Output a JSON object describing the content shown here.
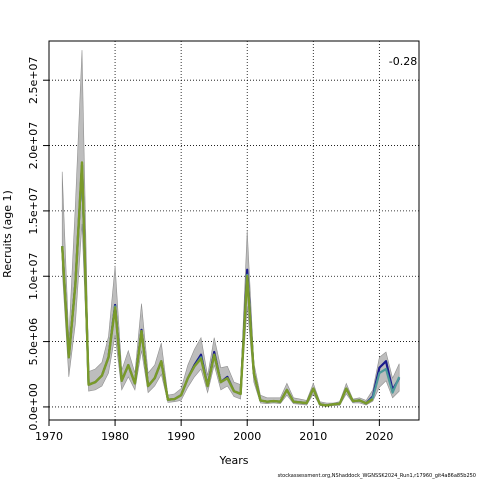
{
  "chart_data": {
    "type": "line",
    "xlabel": "Years",
    "ylabel": "Recruits (age 1)",
    "xlim": [
      1970,
      2026
    ],
    "ylim": [
      -1000000,
      28000000
    ],
    "x_ticks": [
      1970,
      1980,
      1990,
      2000,
      2010,
      2020
    ],
    "y_ticks": [
      0,
      5000000,
      10000000,
      15000000,
      20000000,
      25000000
    ],
    "y_tick_labels": [
      "0.0e+00",
      "5.0e+06",
      "1.0e+07",
      "1.5e+07",
      "2.0e+07",
      "2.5e+07"
    ],
    "grid": true,
    "annotation": "-0.28",
    "footer": "stockassessment.org,NShaddock_WGNSSK2024_Run1,r17960_git4a86a85b250",
    "x": [
      1972,
      1973,
      1974,
      1975,
      1976,
      1977,
      1978,
      1979,
      1980,
      1981,
      1982,
      1983,
      1984,
      1985,
      1986,
      1987,
      1988,
      1989,
      1990,
      1991,
      1992,
      1993,
      1994,
      1995,
      1996,
      1997,
      1998,
      1999,
      2000,
      2001,
      2002,
      2003,
      2004,
      2005,
      2006,
      2007,
      2008,
      2009,
      2010,
      2011,
      2012,
      2013,
      2014,
      2015,
      2016,
      2017,
      2018,
      2019,
      2020,
      2021,
      2022,
      2023
    ],
    "band_upper": [
      18000000,
      5200000,
      15500000,
      27300000,
      2700000,
      2900000,
      3400000,
      5400000,
      10800000,
      2800000,
      4300000,
      2600000,
      7900000,
      2600000,
      3200000,
      4900000,
      900000,
      1000000,
      1400000,
      3200000,
      4400000,
      5300000,
      2400000,
      5300000,
      3000000,
      3100000,
      1900000,
      1700000,
      13500000,
      3400000,
      900000,
      700000,
      700000,
      700000,
      1800000,
      700000,
      600000,
      500000,
      1800000,
      400000,
      300000,
      300000,
      400000,
      1800000,
      600000,
      700000,
      500000,
      1300000,
      3800000,
      4200000,
      2200000,
      3300000
    ],
    "band_lower": [
      10500000,
      2300000,
      6400000,
      14000000,
      1200000,
      1300000,
      1600000,
      2600000,
      5500000,
      1300000,
      2300000,
      1300000,
      4300000,
      1100000,
      1600000,
      2500000,
      350000,
      400000,
      500000,
      1500000,
      2300000,
      2900000,
      1100000,
      3200000,
      1300000,
      1600000,
      800000,
      600000,
      7700000,
      1900000,
      300000,
      250000,
      300000,
      250000,
      900000,
      250000,
      200000,
      150000,
      1000000,
      100000,
      50000,
      100000,
      120000,
      1000000,
      300000,
      300000,
      150000,
      450000,
      1500000,
      2000000,
      700000,
      1200000
    ],
    "series": [
      {
        "name": "",
        "color": "#1a1a8c",
        "values": [
          12300000,
          3800000,
          9500000,
          18500000,
          1700000,
          1900000,
          2400000,
          3800000,
          7800000,
          2000000,
          3200000,
          1800000,
          5900000,
          1600000,
          2200000,
          3500000,
          550000,
          600000,
          900000,
          2200000,
          3200000,
          4000000,
          1600000,
          4200000,
          1900000,
          2300000,
          1200000,
          1000000,
          10500000,
          2600000,
          500000,
          400000,
          450000,
          400000,
          1300000,
          400000,
          350000,
          300000,
          1400000,
          200000,
          120000,
          200000,
          250000,
          1400000,
          450000,
          500000,
          280000,
          800000,
          3000000,
          3500000,
          1300000,
          2200000
        ]
      },
      {
        "name": "",
        "color": "#4d9a9a",
        "values": [
          12300000,
          3800000,
          9400000,
          18500000,
          1700000,
          1900000,
          2400000,
          3800000,
          7700000,
          2000000,
          3200000,
          1800000,
          5800000,
          1600000,
          2200000,
          3500000,
          550000,
          600000,
          900000,
          2200000,
          3100000,
          3800000,
          1600000,
          4000000,
          1900000,
          2200000,
          1200000,
          1000000,
          10100000,
          2600000,
          500000,
          400000,
          450000,
          400000,
          1300000,
          400000,
          350000,
          300000,
          1400000,
          200000,
          120000,
          200000,
          250000,
          1400000,
          450000,
          500000,
          280000,
          700000,
          2600000,
          2900000,
          1100000,
          2300000
        ]
      },
      {
        "name": "",
        "color": "#7a9a2a",
        "values": [
          12300000,
          3800000,
          9400000,
          18700000,
          1700000,
          1900000,
          2400000,
          3800000,
          7600000,
          2000000,
          3200000,
          1800000,
          5800000,
          1600000,
          2200000,
          3500000,
          550000,
          600000,
          900000,
          2200000,
          3100000,
          3700000,
          1600000,
          4000000,
          1900000,
          2200000,
          1200000,
          1000000,
          10000000,
          2600000,
          500000,
          400000,
          450000,
          400000,
          1300000,
          400000,
          350000,
          300000,
          1400000,
          200000,
          120000,
          200000,
          250000,
          1400000,
          450000,
          500000,
          280000,
          600000,
          null,
          null,
          null,
          null
        ]
      }
    ]
  }
}
